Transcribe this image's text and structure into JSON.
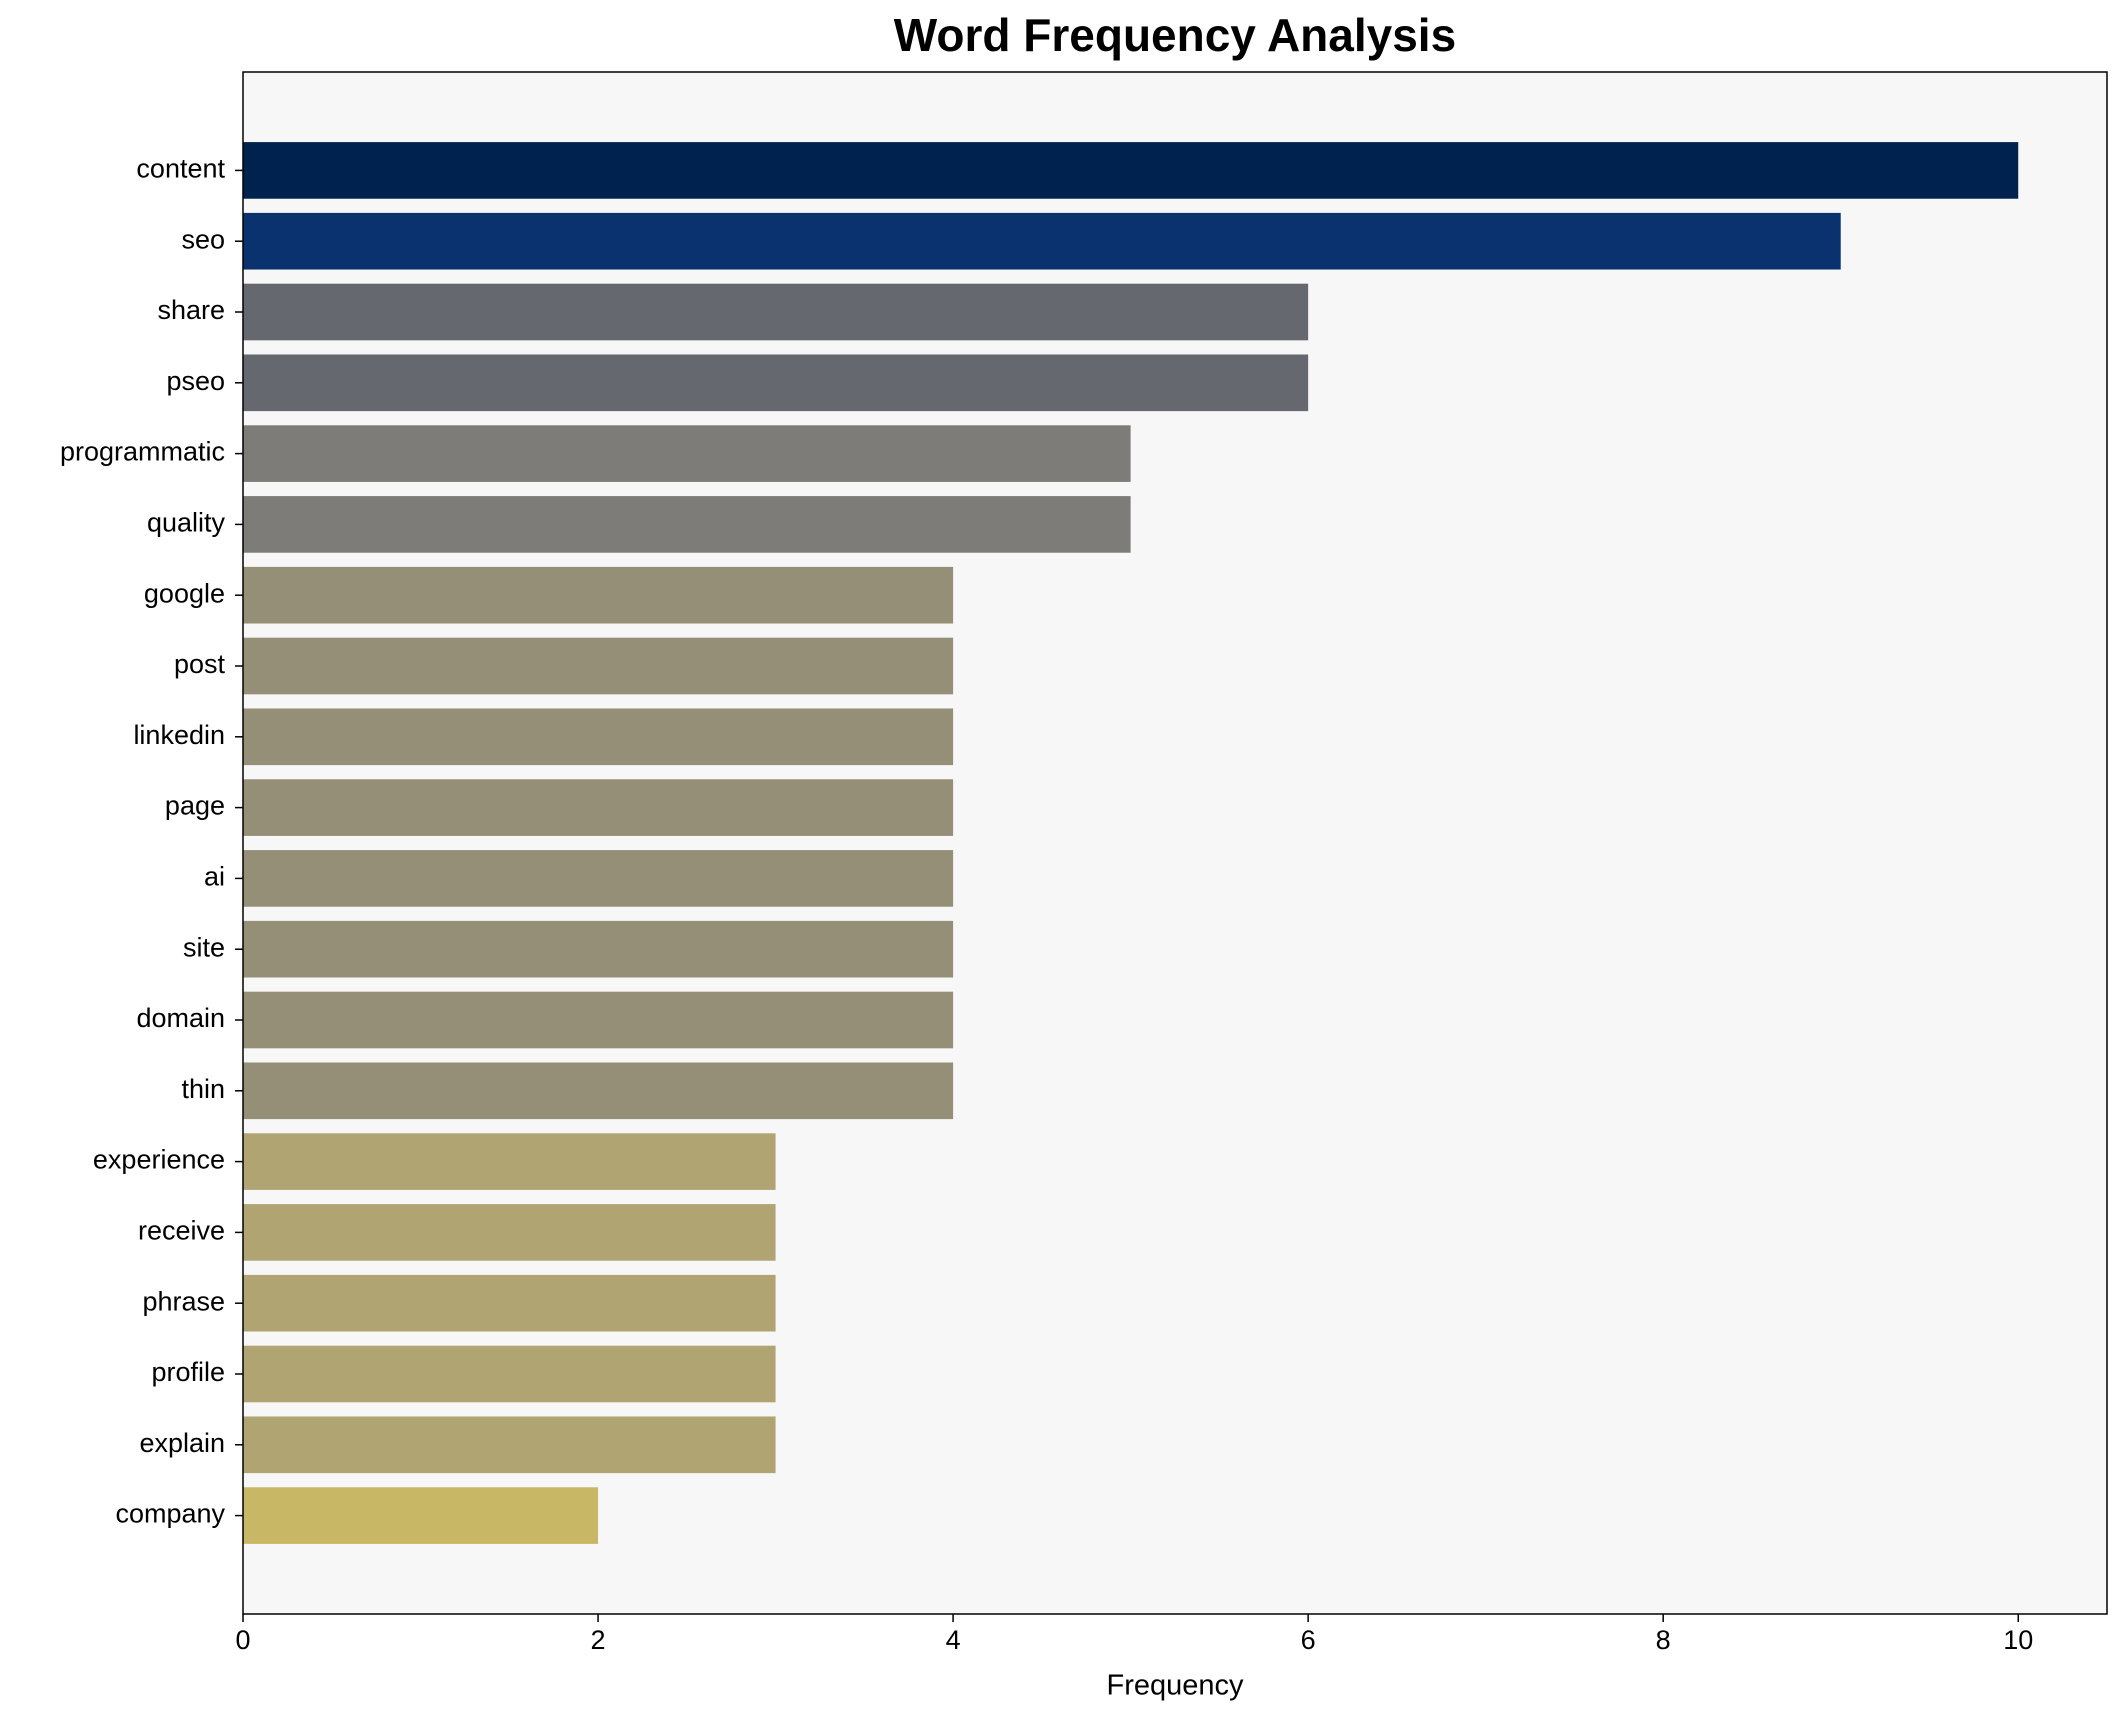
{
  "chart_data": {
    "type": "barh",
    "title": "Word Frequency Analysis",
    "x_label": "Frequency",
    "categories": [
      "content",
      "seo",
      "share",
      "pseo",
      "programmatic",
      "quality",
      "google",
      "post",
      "linkedin",
      "page",
      "ai",
      "site",
      "domain",
      "thin",
      "experience",
      "receive",
      "phrase",
      "profile",
      "explain",
      "company"
    ],
    "values": [
      10,
      9,
      6,
      6,
      5,
      5,
      4,
      4,
      4,
      4,
      4,
      4,
      4,
      4,
      3,
      3,
      3,
      3,
      3,
      2
    ],
    "colors": [
      "#00224e",
      "#0a326e",
      "#666870",
      "#666870",
      "#7d7c78",
      "#7d7c78",
      "#958f78",
      "#958f78",
      "#958f78",
      "#958f78",
      "#958f78",
      "#958f78",
      "#958f78",
      "#958f78",
      "#b0a472",
      "#b0a472",
      "#b0a472",
      "#b0a472",
      "#b0a472",
      "#c8b866"
    ],
    "xlim": [
      0,
      10.5
    ],
    "xticks": [
      0,
      2,
      4,
      6,
      8,
      10
    ],
    "grid": false
  }
}
